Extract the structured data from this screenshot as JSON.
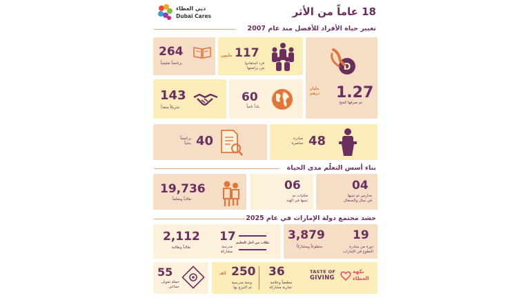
{
  "header": {
    "title": "18 عاماً من الأثر",
    "logo_ar": "دبي العطاء",
    "logo_en": "Dubai Cares"
  },
  "sections": {
    "s1": "تغيير حياة الأفراد للأفضل منذ عام 2007",
    "s2": "بناء أسس التعلّم مدى الحياة",
    "s3": "حشد مجتمع دولة الإمارات في عام 2025"
  },
  "stats": {
    "programs": {
      "value": "264",
      "label": "برنامجاً تعليمياً",
      "icon": "book-icon"
    },
    "beneficiaries": {
      "value": "117",
      "unit": "مليون",
      "label1": "فرد استفادوا",
      "label2": "من برامجها",
      "icon": "people-icon"
    },
    "spent": {
      "value": "1.27",
      "unit1": "مليار",
      "unit2": "درهم",
      "label": "تم صرفها كمنح",
      "icon": "coin-hand-icon"
    },
    "partners": {
      "value": "143",
      "label": "شريكاً منفذاً",
      "icon": "handshake-icon"
    },
    "countries": {
      "value": "60",
      "label": "بلداً نامياً",
      "icon": "globe-icon"
    },
    "research": {
      "value": "40",
      "label1": "برنامجاً",
      "label2": "بحثياً",
      "icon": "report-icon"
    },
    "advocacy": {
      "value": "48",
      "label1": "مبادرة",
      "label2": "مناصرة",
      "icon": "podium-icon"
    },
    "students": {
      "value": "19,736",
      "label": "طالباً ومعلماً",
      "icon": "students-icon"
    },
    "libraries": {
      "value": "06",
      "label1": "مكتبات تم",
      "label2": "تبنيها في الهند"
    },
    "schools": {
      "value": "04",
      "label1": "مدارس تم تبنيها",
      "label2": "في نيبال والسنغال"
    },
    "school_students": {
      "value": "2,112",
      "label": "طالباً وطالبة"
    },
    "participating_schools": {
      "value": "17",
      "label1": "مدرسة",
      "label2": "مشاركة",
      "badge": "طلاب من أجل التعليم"
    },
    "volunteers": {
      "value": "3,879",
      "label": "متطوعاً ومشاركاً"
    },
    "volunteer_rounds": {
      "value": "19",
      "label1": "دورة من مبادرة",
      "label2": "التطوع في الإمارات"
    },
    "campaigns": {
      "value": "55",
      "label1": "حملة تمويل",
      "label2": "جماعي",
      "icon": "crowdfund-icon"
    },
    "meals": {
      "value": "250",
      "unit": "ألف",
      "label1": "وجبة مدرسية",
      "label2": "تم التبرع بها"
    },
    "restaurants": {
      "value": "36",
      "label1": "مطعماً وعلامة",
      "label2": "تجارية مشاركة"
    },
    "taste": {
      "line1": "TASTE OF",
      "line2": "GIVING",
      "ar1": "نكهة",
      "ar2": "العطاء",
      "icon": "heart-icon"
    }
  },
  "colors": {
    "purple": "#6b2f5f",
    "orange": "#e2753a",
    "peach": "#f6ddc6",
    "yellow": "#fbedb8",
    "cream": "#fdf1dc"
  }
}
